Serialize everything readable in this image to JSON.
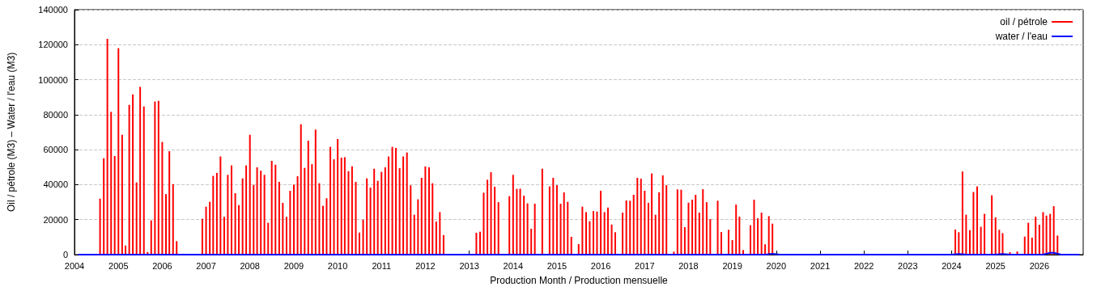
{
  "chart_data": {
    "type": "bar",
    "xlabel": "Production Month / Production mensuelle",
    "ylabel": "Oil / pétrole (M3) – Water / l'eau (M3)",
    "xlim": [
      "2004-01",
      "2027-01"
    ],
    "xticks": [
      "2004",
      "2005",
      "2006",
      "2007",
      "2008",
      "2009",
      "2010",
      "2011",
      "2012",
      "2013",
      "2014",
      "2015",
      "2016",
      "2017",
      "2018",
      "2019",
      "2020",
      "2021",
      "2022",
      "2023",
      "2024",
      "2025",
      "2026"
    ],
    "ylim": [
      0,
      140000
    ],
    "yticks": [
      0,
      20000,
      40000,
      60000,
      80000,
      100000,
      120000,
      140000
    ],
    "grid": "y",
    "legend": "top right",
    "series": [
      {
        "name": "oil / pétrole",
        "color": "#ff0000",
        "x": [
          "2004-08",
          "2004-09",
          "2004-10",
          "2004-11",
          "2004-12",
          "2005-01",
          "2005-02",
          "2005-03",
          "2005-04",
          "2005-05",
          "2005-06",
          "2005-07",
          "2005-08",
          "2005-09",
          "2005-10",
          "2005-11",
          "2005-12",
          "2006-01",
          "2006-02",
          "2006-03",
          "2006-04",
          "2006-05",
          "2006-12",
          "2007-01",
          "2007-02",
          "2007-03",
          "2007-04",
          "2007-05",
          "2007-06",
          "2007-07",
          "2007-08",
          "2007-09",
          "2007-10",
          "2007-11",
          "2007-12",
          "2008-01",
          "2008-02",
          "2008-03",
          "2008-04",
          "2008-05",
          "2008-06",
          "2008-07",
          "2008-08",
          "2008-09",
          "2008-10",
          "2008-11",
          "2008-12",
          "2009-01",
          "2009-02",
          "2009-03",
          "2009-04",
          "2009-05",
          "2009-06",
          "2009-07",
          "2009-08",
          "2009-09",
          "2009-10",
          "2009-11",
          "2009-12",
          "2010-01",
          "2010-02",
          "2010-03",
          "2010-04",
          "2010-05",
          "2010-06",
          "2010-07",
          "2010-08",
          "2010-09",
          "2010-10",
          "2010-11",
          "2010-12",
          "2011-01",
          "2011-02",
          "2011-03",
          "2011-04",
          "2011-05",
          "2011-06",
          "2011-07",
          "2011-08",
          "2011-09",
          "2011-10",
          "2011-11",
          "2011-12",
          "2012-01",
          "2012-02",
          "2012-03",
          "2012-04",
          "2012-05",
          "2012-06",
          "2013-03",
          "2013-04",
          "2013-05",
          "2013-06",
          "2013-07",
          "2013-08",
          "2013-09",
          "2013-12",
          "2014-01",
          "2014-02",
          "2014-03",
          "2014-04",
          "2014-05",
          "2014-06",
          "2014-07",
          "2014-09",
          "2014-10",
          "2014-11",
          "2014-12",
          "2015-01",
          "2015-02",
          "2015-03",
          "2015-04",
          "2015-05",
          "2015-07",
          "2015-08",
          "2015-09",
          "2015-10",
          "2015-11",
          "2015-12",
          "2016-01",
          "2016-02",
          "2016-03",
          "2016-04",
          "2016-05",
          "2016-07",
          "2016-08",
          "2016-09",
          "2016-10",
          "2016-11",
          "2016-12",
          "2017-01",
          "2017-02",
          "2017-03",
          "2017-04",
          "2017-05",
          "2017-06",
          "2017-07",
          "2017-09",
          "2017-10",
          "2017-11",
          "2017-12",
          "2018-01",
          "2018-02",
          "2018-03",
          "2018-04",
          "2018-05",
          "2018-06",
          "2018-07",
          "2018-08",
          "2018-09",
          "2018-10",
          "2018-11",
          "2018-12",
          "2019-01",
          "2019-02",
          "2019-03",
          "2019-04",
          "2019-06",
          "2019-07",
          "2019-08",
          "2019-09",
          "2019-10",
          "2019-11",
          "2019-12",
          "2024-02",
          "2024-03",
          "2024-04",
          "2024-05",
          "2024-06",
          "2024-07",
          "2024-08",
          "2024-09",
          "2024-10",
          "2024-12",
          "2025-01",
          "2025-02",
          "2025-03",
          "2025-05",
          "2025-07",
          "2025-09",
          "2025-10",
          "2025-11",
          "2025-12",
          "2026-01",
          "2026-02",
          "2026-03",
          "2026-04",
          "2026-05",
          "2026-06"
        ],
        "values": [
          32000,
          55100,
          123400,
          81600,
          56400,
          118000,
          68500,
          5200,
          85600,
          91600,
          41300,
          95900,
          84700,
          1500,
          19600,
          87500,
          87900,
          64400,
          34600,
          59100,
          40300,
          7700,
          20500,
          27400,
          30200,
          45000,
          46700,
          56100,
          21600,
          45600,
          51000,
          35100,
          28300,
          43600,
          51000,
          68500,
          39900,
          49900,
          48000,
          45600,
          18200,
          53600,
          51400,
          41600,
          29600,
          21600,
          36500,
          40000,
          44800,
          74500,
          49600,
          65100,
          51700,
          71500,
          40800,
          27900,
          32200,
          61600,
          54500,
          66100,
          55400,
          55700,
          47700,
          50500,
          41600,
          12600,
          20000,
          43600,
          38300,
          49100,
          42200,
          47300,
          49900,
          56100,
          61600,
          61000,
          49400,
          56100,
          58400,
          39600,
          22800,
          31600,
          43900,
          50400,
          49900,
          40800,
          18900,
          24300,
          11200,
          12500,
          13100,
          35400,
          42800,
          47100,
          38800,
          30000,
          33400,
          45600,
          37600,
          37700,
          33700,
          29300,
          14800,
          29100,
          49100,
          null,
          39000,
          43900,
          39700,
          29100,
          35600,
          30200,
          10200,
          6000,
          27400,
          24300,
          19100,
          24900,
          24600,
          36500,
          24300,
          26900,
          17200,
          12800,
          24000,
          31000,
          30800,
          34200,
          43900,
          43400,
          36500,
          29600,
          46400,
          22800,
          35600,
          45300,
          39700,
          1700,
          37300,
          37100,
          15700,
          29700,
          31400,
          34200,
          24000,
          37400,
          30000,
          20300,
          null,
          30800,
          12900,
          null,
          14200,
          8300,
          28600,
          21700,
          2600,
          16800,
          31400,
          20800,
          24000,
          5900,
          22000,
          17700,
          14300,
          12800,
          47500,
          22800,
          14000,
          35800,
          39000,
          15900,
          23300,
          33900,
          21300,
          14200,
          12300,
          1400,
          1800,
          10300,
          18200,
          9700,
          21700,
          17100,
          24300,
          22300,
          23300,
          27700,
          10900
        ]
      },
      {
        "name": "water / l'eau",
        "type": "line",
        "color": "#0000ff",
        "x": [
          "2004-02",
          "2019-10",
          "2019-12",
          "2020-02",
          "2024-01",
          "2024-03",
          "2024-05",
          "2025-01",
          "2025-03",
          "2025-05",
          "2026-02",
          "2026-04",
          "2026-05",
          "2026-07",
          "2026-12"
        ],
        "values": [
          0,
          0,
          500,
          0,
          0,
          400,
          0,
          0,
          300,
          0,
          0,
          1000,
          1000,
          0,
          0
        ]
      }
    ]
  }
}
